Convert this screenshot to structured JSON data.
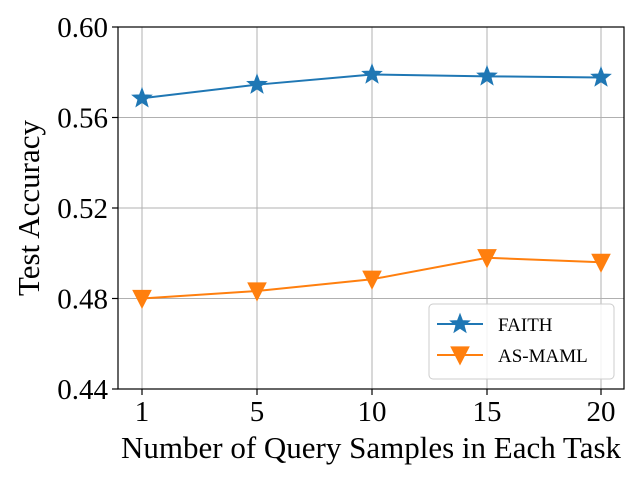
{
  "chart_data": {
    "type": "line",
    "title": "",
    "xlabel": "Number of Query Samples in Each Task",
    "ylabel": "Test Accuracy",
    "categories": [
      "1",
      "5",
      "10",
      "15",
      "20"
    ],
    "ylim": [
      0.44,
      0.6
    ],
    "yticks": [
      "0.44",
      "0.48",
      "0.52",
      "0.56",
      "0.60"
    ],
    "ytick_values": [
      0.44,
      0.48,
      0.52,
      0.56,
      0.6
    ],
    "grid": true,
    "legend_position": "lower-right",
    "series": [
      {
        "name": "FAITH",
        "color": "#1f77b4",
        "marker": "star",
        "values": [
          0.5685,
          0.5745,
          0.579,
          0.5782,
          0.5777
        ]
      },
      {
        "name": "AS-MAML",
        "color": "#ff7f0e",
        "marker": "triangle-down",
        "values": [
          0.48,
          0.4833,
          0.4885,
          0.498,
          0.496
        ]
      }
    ]
  }
}
